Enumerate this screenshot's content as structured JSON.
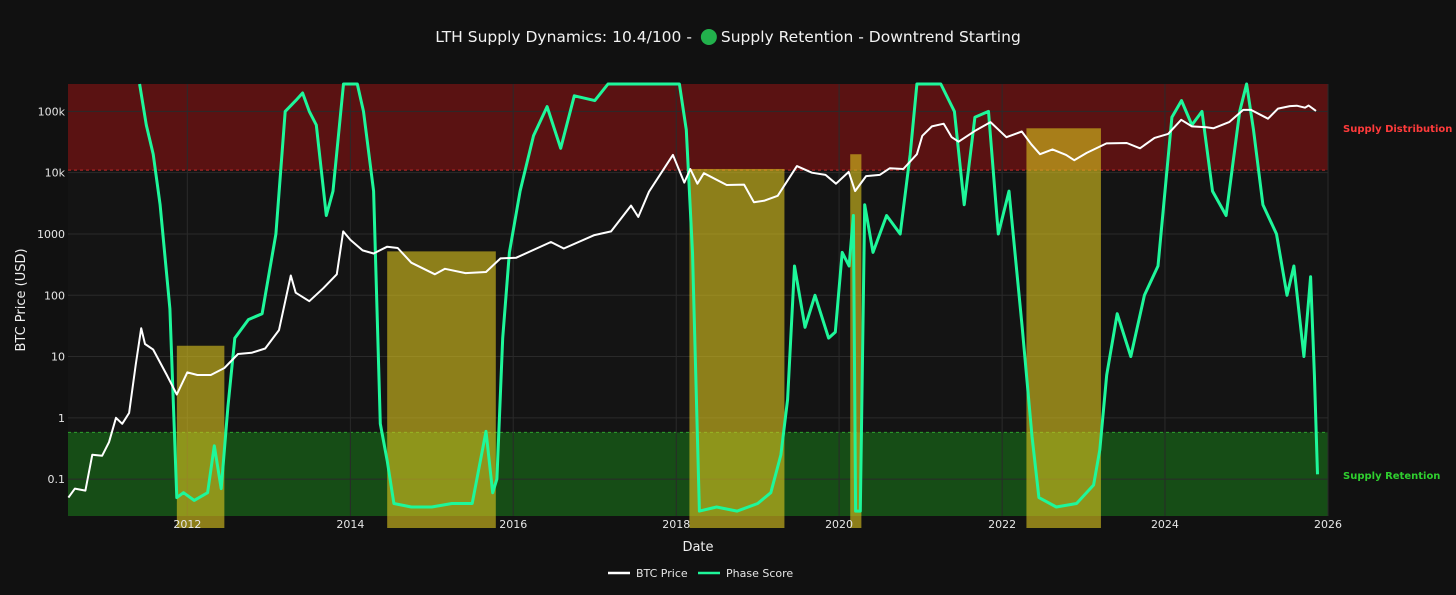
{
  "chart_data": {
    "type": "line",
    "title_prefix": "LTH Supply Dynamics: 10.4/100 - ",
    "title_status": "Supply Retention - Downtrend Starting",
    "status_color": "#22b14c",
    "xlabel": "Date",
    "ylabel": "BTC Price (USD)",
    "y_scale": "log",
    "ylim": [
      0.025,
      280000
    ],
    "xlim": [
      "2010-07-15",
      "2026-01-01"
    ],
    "grid": true,
    "legend_position": "bottom-center",
    "x_ticks": [
      "2012",
      "2014",
      "2016",
      "2018",
      "2020",
      "2022",
      "2024",
      "2026"
    ],
    "y_ticks": [
      {
        "value": 0.1,
        "label": "0.1"
      },
      {
        "value": 1,
        "label": "1"
      },
      {
        "value": 10,
        "label": "10"
      },
      {
        "value": 100,
        "label": "100"
      },
      {
        "value": 1000,
        "label": "1000"
      },
      {
        "value": 10000,
        "label": "10k"
      },
      {
        "value": 100000,
        "label": "100k"
      }
    ],
    "zones": [
      {
        "name": "Supply Distribution",
        "from": 11000,
        "to": 280000,
        "color": "#5a1212",
        "label_color": "#ff3b3b"
      },
      {
        "name": "Supply Retention",
        "from": 0.025,
        "to": 0.58,
        "color": "#164d16",
        "label_color": "#2fcf2f"
      }
    ],
    "highlight_periods": [
      {
        "start": "2011-11-15",
        "end": "2012-06-15",
        "top": 15
      },
      {
        "start": "2014-06-15",
        "end": "2015-10-15",
        "top": 520
      },
      {
        "start": "2018-03-01",
        "end": "2019-05-01",
        "top": 11500
      },
      {
        "start": "2020-02-20",
        "end": "2020-04-10",
        "top": 20000
      },
      {
        "start": "2022-04-20",
        "end": "2023-03-20",
        "top": 53000
      }
    ],
    "series": [
      {
        "name": "BTC Price",
        "color": "#ffffff",
        "points": [
          [
            "2010-07-17",
            0.05
          ],
          [
            "2010-08-15",
            0.07
          ],
          [
            "2010-10-01",
            0.065
          ],
          [
            "2010-11-01",
            0.25
          ],
          [
            "2010-12-15",
            0.24
          ],
          [
            "2011-01-15",
            0.4
          ],
          [
            "2011-02-15",
            1.0
          ],
          [
            "2011-03-15",
            0.8
          ],
          [
            "2011-04-15",
            1.2
          ],
          [
            "2011-05-15",
            7.5
          ],
          [
            "2011-06-08",
            29
          ],
          [
            "2011-06-25",
            16
          ],
          [
            "2011-08-01",
            13
          ],
          [
            "2011-09-01",
            8
          ],
          [
            "2011-10-01",
            5
          ],
          [
            "2011-11-15",
            2.4
          ],
          [
            "2012-01-01",
            5.5
          ],
          [
            "2012-02-15",
            5
          ],
          [
            "2012-04-15",
            5
          ],
          [
            "2012-06-15",
            6.5
          ],
          [
            "2012-08-15",
            11
          ],
          [
            "2012-10-15",
            11.5
          ],
          [
            "2012-12-15",
            13.5
          ],
          [
            "2013-02-15",
            27
          ],
          [
            "2013-04-09",
            210
          ],
          [
            "2013-05-01",
            110
          ],
          [
            "2013-07-01",
            80
          ],
          [
            "2013-09-01",
            130
          ],
          [
            "2013-11-01",
            220
          ],
          [
            "2013-11-30",
            1100
          ],
          [
            "2014-01-01",
            800
          ],
          [
            "2014-02-25",
            540
          ],
          [
            "2014-04-15",
            480
          ],
          [
            "2014-06-15",
            620
          ],
          [
            "2014-08-01",
            590
          ],
          [
            "2014-10-01",
            340
          ],
          [
            "2015-01-15",
            220
          ],
          [
            "2015-03-01",
            270
          ],
          [
            "2015-06-01",
            230
          ],
          [
            "2015-09-01",
            240
          ],
          [
            "2015-11-05",
            400
          ],
          [
            "2016-01-15",
            410
          ],
          [
            "2016-06-18",
            740
          ],
          [
            "2016-08-15",
            580
          ],
          [
            "2016-12-30",
            960
          ],
          [
            "2017-03-15",
            1100
          ],
          [
            "2017-06-12",
            2900
          ],
          [
            "2017-07-15",
            1900
          ],
          [
            "2017-09-01",
            4900
          ],
          [
            "2017-12-17",
            19500
          ],
          [
            "2018-02-06",
            6900
          ],
          [
            "2018-03-05",
            11500
          ],
          [
            "2018-04-06",
            6600
          ],
          [
            "2018-05-05",
            9800
          ],
          [
            "2018-08-15",
            6300
          ],
          [
            "2018-11-01",
            6400
          ],
          [
            "2018-12-15",
            3300
          ],
          [
            "2019-02-01",
            3500
          ],
          [
            "2019-04-01",
            4200
          ],
          [
            "2019-06-26",
            12800
          ],
          [
            "2019-09-01",
            10000
          ],
          [
            "2019-11-01",
            9200
          ],
          [
            "2019-12-18",
            6600
          ],
          [
            "2020-02-13",
            10300
          ],
          [
            "2020-03-13",
            5000
          ],
          [
            "2020-05-01",
            8800
          ],
          [
            "2020-07-01",
            9200
          ],
          [
            "2020-08-15",
            11800
          ],
          [
            "2020-10-15",
            11500
          ],
          [
            "2020-12-15",
            20000
          ],
          [
            "2021-01-08",
            40000
          ],
          [
            "2021-02-20",
            57000
          ],
          [
            "2021-04-14",
            63000
          ],
          [
            "2021-05-20",
            38000
          ],
          [
            "2021-06-20",
            32000
          ],
          [
            "2021-09-01",
            48000
          ],
          [
            "2021-11-10",
            67000
          ],
          [
            "2022-01-20",
            38000
          ],
          [
            "2022-03-30",
            47000
          ],
          [
            "2022-05-12",
            29000
          ],
          [
            "2022-06-20",
            20000
          ],
          [
            "2022-08-15",
            24000
          ],
          [
            "2022-10-15",
            19500
          ],
          [
            "2022-11-20",
            16000
          ],
          [
            "2023-01-15",
            21000
          ],
          [
            "2023-04-14",
            30000
          ],
          [
            "2023-07-14",
            30500
          ],
          [
            "2023-09-11",
            25000
          ],
          [
            "2023-11-15",
            37000
          ],
          [
            "2024-01-15",
            43000
          ],
          [
            "2024-03-14",
            73000
          ],
          [
            "2024-05-01",
            57000
          ],
          [
            "2024-07-05",
            55000
          ],
          [
            "2024-08-05",
            53000
          ],
          [
            "2024-10-15",
            67000
          ],
          [
            "2024-12-17",
            106000
          ],
          [
            "2025-01-21",
            106000
          ],
          [
            "2025-04-07",
            76000
          ],
          [
            "2025-05-22",
            111000
          ],
          [
            "2025-07-14",
            122000
          ],
          [
            "2025-08-14",
            124000
          ],
          [
            "2025-09-20",
            115000
          ],
          [
            "2025-10-06",
            125000
          ],
          [
            "2025-11-08",
            102000
          ]
        ]
      },
      {
        "name": "Phase Score",
        "color": "#1ef79a",
        "points": [
          [
            "2011-06-01",
            280000
          ],
          [
            "2011-07-01",
            60000
          ],
          [
            "2011-08-01",
            20000
          ],
          [
            "2011-09-01",
            3000
          ],
          [
            "2011-10-15",
            60
          ],
          [
            "2011-11-15",
            0.05
          ],
          [
            "2011-12-15",
            0.06
          ],
          [
            "2012-02-01",
            0.045
          ],
          [
            "2012-04-01",
            0.06
          ],
          [
            "2012-05-01",
            0.35
          ],
          [
            "2012-06-01",
            0.07
          ],
          [
            "2012-07-01",
            1.5
          ],
          [
            "2012-08-01",
            20
          ],
          [
            "2012-10-01",
            40
          ],
          [
            "2012-12-01",
            50
          ],
          [
            "2013-02-01",
            1000
          ],
          [
            "2013-03-15",
            100000
          ],
          [
            "2013-05-01",
            150000
          ],
          [
            "2013-06-01",
            200000
          ],
          [
            "2013-07-01",
            100000
          ],
          [
            "2013-08-01",
            60000
          ],
          [
            "2013-09-15",
            2000
          ],
          [
            "2013-10-15",
            5000
          ],
          [
            "2013-12-01",
            280000
          ],
          [
            "2014-02-01",
            280000
          ],
          [
            "2014-03-01",
            100000
          ],
          [
            "2014-04-15",
            5000
          ],
          [
            "2014-05-15",
            0.8
          ],
          [
            "2014-06-15",
            0.2
          ],
          [
            "2014-07-15",
            0.04
          ],
          [
            "2014-10-01",
            0.035
          ],
          [
            "2015-01-01",
            0.035
          ],
          [
            "2015-04-01",
            0.04
          ],
          [
            "2015-07-01",
            0.04
          ],
          [
            "2015-09-01",
            0.6
          ],
          [
            "2015-10-01",
            0.06
          ],
          [
            "2015-10-20",
            0.1
          ],
          [
            "2015-11-15",
            20
          ],
          [
            "2015-12-15",
            500
          ],
          [
            "2016-02-01",
            5000
          ],
          [
            "2016-04-01",
            40000
          ],
          [
            "2016-06-01",
            120000
          ],
          [
            "2016-08-01",
            25000
          ],
          [
            "2016-10-01",
            180000
          ],
          [
            "2017-01-01",
            150000
          ],
          [
            "2017-03-01",
            280000
          ],
          [
            "2017-06-01",
            280000
          ],
          [
            "2017-12-01",
            280000
          ],
          [
            "2018-01-15",
            280000
          ],
          [
            "2018-02-15",
            50000
          ],
          [
            "2018-03-15",
            500
          ],
          [
            "2018-04-15",
            0.03
          ],
          [
            "2018-07-01",
            0.035
          ],
          [
            "2018-10-01",
            0.03
          ],
          [
            "2019-01-01",
            0.04
          ],
          [
            "2019-03-01",
            0.06
          ],
          [
            "2019-04-15",
            0.25
          ],
          [
            "2019-05-15",
            2
          ],
          [
            "2019-06-15",
            300
          ],
          [
            "2019-08-01",
            30
          ],
          [
            "2019-09-15",
            100
          ],
          [
            "2019-11-15",
            20
          ],
          [
            "2019-12-15",
            25
          ],
          [
            "2020-01-15",
            500
          ],
          [
            "2020-02-15",
            300
          ],
          [
            "2020-03-05",
            2000
          ],
          [
            "2020-03-15",
            0.03
          ],
          [
            "2020-04-05",
            0.03
          ],
          [
            "2020-04-25",
            3000
          ],
          [
            "2020-06-01",
            500
          ],
          [
            "2020-08-01",
            2000
          ],
          [
            "2020-10-01",
            1000
          ],
          [
            "2020-11-15",
            20000
          ],
          [
            "2020-12-15",
            280000
          ],
          [
            "2021-04-01",
            280000
          ],
          [
            "2021-06-01",
            100000
          ],
          [
            "2021-07-15",
            3000
          ],
          [
            "2021-09-01",
            80000
          ],
          [
            "2021-11-01",
            100000
          ],
          [
            "2021-12-15",
            1000
          ],
          [
            "2022-02-01",
            5000
          ],
          [
            "2022-04-01",
            30
          ],
          [
            "2022-05-15",
            0.5
          ],
          [
            "2022-06-15",
            0.05
          ],
          [
            "2022-09-01",
            0.035
          ],
          [
            "2022-12-01",
            0.04
          ],
          [
            "2023-02-15",
            0.08
          ],
          [
            "2023-03-15",
            0.3
          ],
          [
            "2023-04-15",
            5
          ],
          [
            "2023-06-01",
            50
          ],
          [
            "2023-08-01",
            10
          ],
          [
            "2023-10-01",
            100
          ],
          [
            "2023-12-01",
            300
          ],
          [
            "2024-02-01",
            80000
          ],
          [
            "2024-03-15",
            150000
          ],
          [
            "2024-05-01",
            60000
          ],
          [
            "2024-06-15",
            100000
          ],
          [
            "2024-08-01",
            5000
          ],
          [
            "2024-10-01",
            2000
          ],
          [
            "2024-12-01",
            100000
          ],
          [
            "2025-01-01",
            280000
          ],
          [
            "2025-02-01",
            50000
          ],
          [
            "2025-03-15",
            3000
          ],
          [
            "2025-05-15",
            1000
          ],
          [
            "2025-07-01",
            100
          ],
          [
            "2025-08-01",
            300
          ],
          [
            "2025-09-15",
            10
          ],
          [
            "2025-10-15",
            200
          ],
          [
            "2025-11-01",
            5
          ],
          [
            "2025-11-15",
            0.12
          ]
        ]
      }
    ]
  }
}
